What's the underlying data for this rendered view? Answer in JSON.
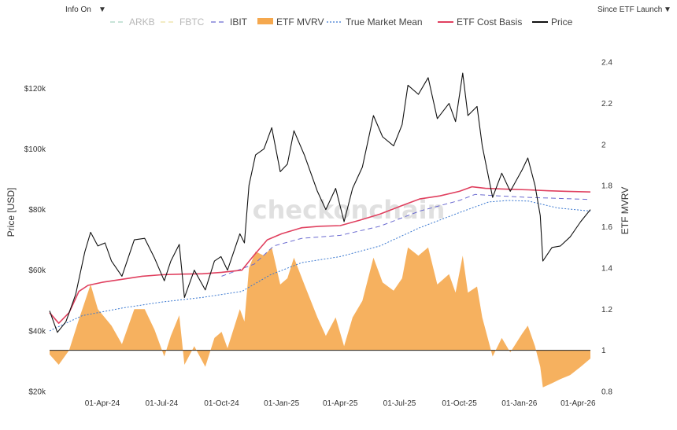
{
  "controls": {
    "info_label": "Info On",
    "info_caret": "▼",
    "range_label": "Since ETF Launch",
    "range_caret": "▼"
  },
  "watermark": "checkonchain",
  "legend": [
    {
      "label": "ARKB",
      "color": "#a6d3c0",
      "style": "dash",
      "faded": true
    },
    {
      "label": "FBTC",
      "color": "#ece0a0",
      "style": "dash",
      "faded": true
    },
    {
      "label": "IBIT",
      "color": "#6a6ad0",
      "style": "dash",
      "faded": false
    },
    {
      "label": "ETF MVRV",
      "color": "#f5a84e",
      "style": "area",
      "faded": false
    },
    {
      "label": "True Market Mean",
      "color": "#3a78d0",
      "style": "dot",
      "faded": false
    },
    {
      "label": "ETF Cost Basis",
      "color": "#e0405f",
      "style": "line",
      "faded": false
    },
    {
      "label": "Price",
      "color": "#111111",
      "style": "line",
      "faded": false
    }
  ],
  "chart_data": {
    "type": "line",
    "xlabel": "",
    "ylabel": "Price [USD]",
    "y2label": "ETF MVRV",
    "x_ticks": [
      "01-Apr-24",
      "01-Jul-24",
      "01-Oct-24",
      "01-Jan-25",
      "01-Apr-25",
      "01-Jul-25",
      "01-Oct-25",
      "01-Jan-26",
      "01-Apr-26"
    ],
    "y_ticks": [
      "$20k",
      "$40k",
      "$60k",
      "$80k",
      "$100k",
      "$120k"
    ],
    "y_tick_values": [
      20000,
      40000,
      60000,
      80000,
      100000,
      120000
    ],
    "y2_ticks": [
      "0.8",
      "1",
      "1.2",
      "1.4",
      "1.6",
      "1.8",
      "2",
      "2.2",
      "2.4"
    ],
    "y2_tick_values": [
      0.8,
      1,
      1.2,
      1.4,
      1.6,
      1.8,
      2,
      2.2,
      2.4
    ],
    "xlim": [
      "2024-01-11",
      "2026-04-20"
    ],
    "ylim": [
      20000,
      132000
    ],
    "y2lim": [
      0.8,
      2.45
    ],
    "mvrv_baseline": 1,
    "grid": false,
    "legend_position": "top",
    "series": [
      {
        "name": "Price",
        "axis": "left",
        "color": "#111111",
        "points": [
          [
            "2024-01-11",
            46600
          ],
          [
            "2024-01-23",
            39500
          ],
          [
            "2024-02-05",
            43000
          ],
          [
            "2024-02-20",
            52000
          ],
          [
            "2024-03-05",
            66000
          ],
          [
            "2024-03-14",
            72500
          ],
          [
            "2024-03-25",
            68000
          ],
          [
            "2024-04-05",
            69000
          ],
          [
            "2024-04-15",
            63000
          ],
          [
            "2024-05-01",
            58000
          ],
          [
            "2024-05-20",
            70000
          ],
          [
            "2024-06-05",
            70500
          ],
          [
            "2024-06-20",
            64000
          ],
          [
            "2024-07-05",
            56500
          ],
          [
            "2024-07-15",
            63000
          ],
          [
            "2024-07-28",
            68500
          ],
          [
            "2024-08-05",
            51000
          ],
          [
            "2024-08-20",
            60000
          ],
          [
            "2024-09-06",
            53500
          ],
          [
            "2024-09-20",
            63000
          ],
          [
            "2024-09-30",
            64500
          ],
          [
            "2024-10-10",
            60000
          ],
          [
            "2024-10-29",
            72000
          ],
          [
            "2024-11-05",
            69000
          ],
          [
            "2024-11-12",
            88000
          ],
          [
            "2024-11-22",
            98000
          ],
          [
            "2024-12-05",
            100000
          ],
          [
            "2024-12-17",
            107000
          ],
          [
            "2024-12-30",
            92500
          ],
          [
            "2025-01-10",
            95000
          ],
          [
            "2025-01-20",
            106000
          ],
          [
            "2025-02-05",
            98000
          ],
          [
            "2025-02-25",
            86000
          ],
          [
            "2025-03-10",
            80000
          ],
          [
            "2025-03-25",
            87000
          ],
          [
            "2025-04-07",
            76000
          ],
          [
            "2025-04-20",
            87000
          ],
          [
            "2025-05-05",
            94000
          ],
          [
            "2025-05-22",
            111000
          ],
          [
            "2025-06-05",
            104000
          ],
          [
            "2025-06-22",
            101000
          ],
          [
            "2025-07-05",
            108000
          ],
          [
            "2025-07-14",
            121000
          ],
          [
            "2025-07-30",
            118000
          ],
          [
            "2025-08-14",
            123500
          ],
          [
            "2025-08-28",
            110000
          ],
          [
            "2025-09-15",
            115000
          ],
          [
            "2025-09-25",
            109000
          ],
          [
            "2025-10-06",
            125000
          ],
          [
            "2025-10-14",
            111000
          ],
          [
            "2025-10-28",
            114000
          ],
          [
            "2025-11-05",
            101000
          ],
          [
            "2025-11-21",
            84000
          ],
          [
            "2025-12-05",
            92000
          ],
          [
            "2025-12-18",
            86000
          ],
          [
            "2026-01-05",
            93000
          ],
          [
            "2026-01-14",
            97000
          ],
          [
            "2026-01-25",
            88000
          ],
          [
            "2026-02-02",
            78000
          ],
          [
            "2026-02-06",
            63000
          ],
          [
            "2026-02-20",
            67500
          ],
          [
            "2026-03-05",
            68000
          ],
          [
            "2026-03-20",
            71000
          ],
          [
            "2026-04-05",
            76000
          ],
          [
            "2026-04-20",
            80000
          ]
        ]
      },
      {
        "name": "ETF Cost Basis",
        "axis": "left",
        "color": "#e0405f",
        "points": [
          [
            "2024-01-11",
            46000
          ],
          [
            "2024-01-25",
            42500
          ],
          [
            "2024-02-10",
            46000
          ],
          [
            "2024-02-25",
            53000
          ],
          [
            "2024-03-10",
            55000
          ],
          [
            "2024-04-01",
            56000
          ],
          [
            "2024-05-01",
            57000
          ],
          [
            "2024-06-01",
            58000
          ],
          [
            "2024-07-01",
            58500
          ],
          [
            "2024-08-01",
            58700
          ],
          [
            "2024-09-01",
            58800
          ],
          [
            "2024-10-01",
            59300
          ],
          [
            "2024-11-01",
            60000
          ],
          [
            "2024-11-20",
            65000
          ],
          [
            "2024-12-10",
            70000
          ],
          [
            "2025-01-01",
            72000
          ],
          [
            "2025-02-01",
            74000
          ],
          [
            "2025-03-01",
            74500
          ],
          [
            "2025-04-01",
            74700
          ],
          [
            "2025-05-01",
            76500
          ],
          [
            "2025-06-01",
            78500
          ],
          [
            "2025-07-01",
            81000
          ],
          [
            "2025-08-01",
            83500
          ],
          [
            "2025-09-01",
            84500
          ],
          [
            "2025-10-01",
            86000
          ],
          [
            "2025-10-20",
            87500
          ],
          [
            "2025-11-10",
            87000
          ],
          [
            "2025-12-15",
            86700
          ],
          [
            "2026-01-15",
            86500
          ],
          [
            "2026-02-15",
            86200
          ],
          [
            "2026-03-15",
            86000
          ],
          [
            "2026-04-20",
            85800
          ]
        ]
      },
      {
        "name": "True Market Mean",
        "axis": "left",
        "color": "#3a78d0",
        "points": [
          [
            "2024-01-11",
            40000
          ],
          [
            "2024-03-01",
            45000
          ],
          [
            "2024-05-01",
            47500
          ],
          [
            "2024-07-01",
            49500
          ],
          [
            "2024-09-01",
            51000
          ],
          [
            "2024-11-01",
            53000
          ],
          [
            "2024-12-15",
            58500
          ],
          [
            "2025-02-01",
            62500
          ],
          [
            "2025-04-01",
            64500
          ],
          [
            "2025-06-01",
            68000
          ],
          [
            "2025-08-01",
            74000
          ],
          [
            "2025-10-01",
            79000
          ],
          [
            "2025-11-15",
            82500
          ],
          [
            "2025-12-15",
            83000
          ],
          [
            "2026-01-15",
            82800
          ],
          [
            "2026-03-01",
            80500
          ],
          [
            "2026-04-20",
            79500
          ]
        ]
      },
      {
        "name": "IBIT",
        "axis": "left",
        "color": "#6a6ad0",
        "points": [
          [
            "2024-10-01",
            58000
          ],
          [
            "2024-11-20",
            62000
          ],
          [
            "2024-12-20",
            68000
          ],
          [
            "2025-02-01",
            70500
          ],
          [
            "2025-04-01",
            71500
          ],
          [
            "2025-06-01",
            74500
          ],
          [
            "2025-08-01",
            79500
          ],
          [
            "2025-10-01",
            83000
          ],
          [
            "2025-10-25",
            85000
          ],
          [
            "2025-12-01",
            84500
          ],
          [
            "2026-01-15",
            84000
          ],
          [
            "2026-03-01",
            83700
          ],
          [
            "2026-04-20",
            83300
          ]
        ]
      },
      {
        "name": "ETF MVRV",
        "axis": "right",
        "color": "#f5a84e",
        "points": [
          [
            "2024-01-11",
            0.98
          ],
          [
            "2024-01-25",
            0.93
          ],
          [
            "2024-02-10",
            1.0
          ],
          [
            "2024-02-25",
            1.15
          ],
          [
            "2024-03-14",
            1.32
          ],
          [
            "2024-03-25",
            1.2
          ],
          [
            "2024-04-15",
            1.12
          ],
          [
            "2024-05-01",
            1.03
          ],
          [
            "2024-05-20",
            1.2
          ],
          [
            "2024-06-05",
            1.2
          ],
          [
            "2024-06-20",
            1.1
          ],
          [
            "2024-07-05",
            0.97
          ],
          [
            "2024-07-15",
            1.07
          ],
          [
            "2024-07-28",
            1.17
          ],
          [
            "2024-08-05",
            0.93
          ],
          [
            "2024-08-20",
            1.02
          ],
          [
            "2024-09-06",
            0.92
          ],
          [
            "2024-09-20",
            1.06
          ],
          [
            "2024-10-01",
            1.09
          ],
          [
            "2024-10-10",
            1.01
          ],
          [
            "2024-10-29",
            1.2
          ],
          [
            "2024-11-05",
            1.14
          ],
          [
            "2024-11-12",
            1.4
          ],
          [
            "2024-11-22",
            1.48
          ],
          [
            "2024-12-05",
            1.46
          ],
          [
            "2024-12-17",
            1.5
          ],
          [
            "2024-12-30",
            1.32
          ],
          [
            "2025-01-10",
            1.35
          ],
          [
            "2025-01-20",
            1.45
          ],
          [
            "2025-02-05",
            1.32
          ],
          [
            "2025-02-25",
            1.16
          ],
          [
            "2025-03-10",
            1.07
          ],
          [
            "2025-03-25",
            1.16
          ],
          [
            "2025-04-07",
            1.02
          ],
          [
            "2025-04-20",
            1.16
          ],
          [
            "2025-05-05",
            1.24
          ],
          [
            "2025-05-22",
            1.45
          ],
          [
            "2025-06-05",
            1.33
          ],
          [
            "2025-06-22",
            1.29
          ],
          [
            "2025-07-05",
            1.35
          ],
          [
            "2025-07-14",
            1.5
          ],
          [
            "2025-07-30",
            1.46
          ],
          [
            "2025-08-14",
            1.5
          ],
          [
            "2025-08-28",
            1.32
          ],
          [
            "2025-09-15",
            1.37
          ],
          [
            "2025-09-25",
            1.28
          ],
          [
            "2025-10-06",
            1.46
          ],
          [
            "2025-10-14",
            1.28
          ],
          [
            "2025-10-28",
            1.31
          ],
          [
            "2025-11-05",
            1.16
          ],
          [
            "2025-11-21",
            0.97
          ],
          [
            "2025-12-05",
            1.06
          ],
          [
            "2025-12-18",
            0.99
          ],
          [
            "2026-01-05",
            1.08
          ],
          [
            "2026-01-14",
            1.12
          ],
          [
            "2026-01-25",
            1.02
          ],
          [
            "2026-02-02",
            0.92
          ],
          [
            "2026-02-06",
            0.82
          ],
          [
            "2026-02-20",
            0.84
          ],
          [
            "2026-03-05",
            0.86
          ],
          [
            "2026-03-20",
            0.88
          ],
          [
            "2026-04-05",
            0.92
          ],
          [
            "2026-04-20",
            0.96
          ]
        ]
      }
    ]
  }
}
